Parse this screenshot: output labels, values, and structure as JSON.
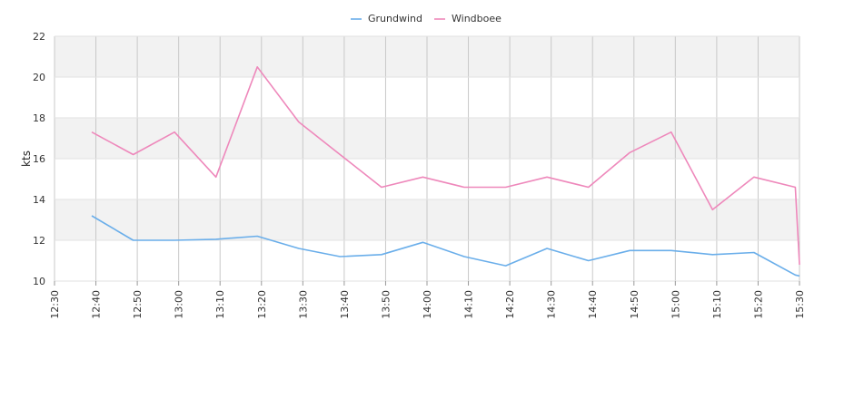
{
  "chart_data": {
    "type": "line",
    "ylabel": "kts",
    "xlabel": "",
    "title": "",
    "ylim": [
      10,
      22
    ],
    "yticks": [
      10,
      12,
      14,
      16,
      18,
      20,
      22
    ],
    "categories": [
      "12:30",
      "12:40",
      "12:50",
      "13:00",
      "13:10",
      "13:20",
      "13:30",
      "13:40",
      "13:50",
      "14:00",
      "14:10",
      "14:20",
      "14:30",
      "14:40",
      "14:50",
      "15:00",
      "15:10",
      "15:20",
      "15:30"
    ],
    "xlim_minutes": [
      750,
      930
    ],
    "grid": true,
    "legend": "top-center",
    "series": [
      {
        "name": "Grundwind",
        "color": "#6aaeea",
        "times": [
          "12:39",
          "12:49",
          "12:59",
          "13:09",
          "13:19",
          "13:29",
          "13:39",
          "13:49",
          "13:59",
          "14:09",
          "14:19",
          "14:29",
          "14:39",
          "14:49",
          "14:59",
          "15:09",
          "15:19",
          "15:29",
          "15:30"
        ],
        "values": [
          13.2,
          12.0,
          12.0,
          12.05,
          12.2,
          11.6,
          11.2,
          11.3,
          11.9,
          11.2,
          10.75,
          11.6,
          11.0,
          11.5,
          11.5,
          11.3,
          11.4,
          10.3,
          10.25
        ]
      },
      {
        "name": "Windboee",
        "color": "#ee88bb",
        "times": [
          "12:39",
          "12:49",
          "12:59",
          "13:09",
          "13:19",
          "13:29",
          "13:39",
          "13:49",
          "13:59",
          "14:09",
          "14:19",
          "14:29",
          "14:39",
          "14:49",
          "14:59",
          "15:09",
          "15:19",
          "15:29",
          "15:30"
        ],
        "values": [
          17.3,
          16.2,
          17.3,
          15.1,
          20.5,
          17.8,
          16.2,
          14.6,
          15.1,
          14.6,
          14.6,
          15.1,
          14.6,
          16.3,
          17.3,
          13.5,
          15.1,
          14.6,
          10.8
        ]
      }
    ]
  }
}
